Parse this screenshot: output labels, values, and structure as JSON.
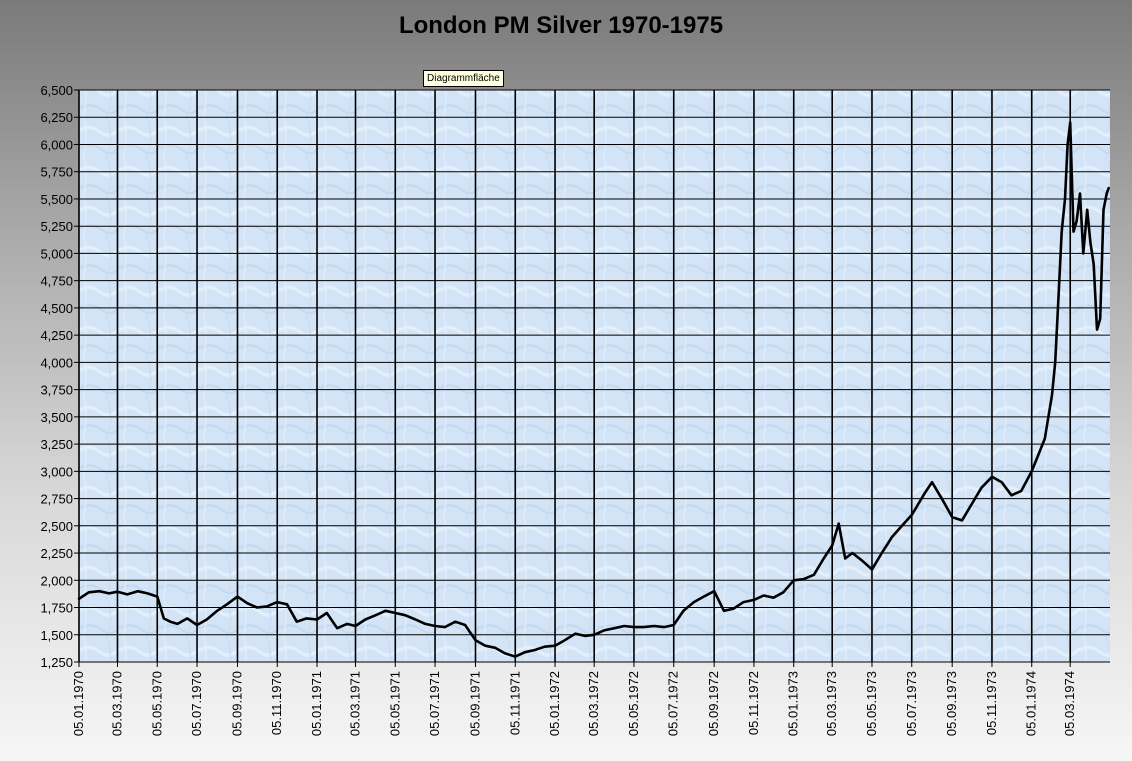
{
  "window": {
    "tooltip_text": "Diagrammfläche"
  },
  "chart_data": {
    "type": "line",
    "title": "London PM Silver 1970-1975",
    "xlabel": "",
    "ylabel": "",
    "ylim": [
      1250,
      6500
    ],
    "yticks": [
      1250,
      1500,
      1750,
      2000,
      2250,
      2500,
      2750,
      3000,
      3250,
      3500,
      3750,
      4000,
      4250,
      4500,
      4750,
      5000,
      5250,
      5500,
      5750,
      6000,
      6250,
      6500
    ],
    "ytick_labels": [
      "1,250",
      "1,500",
      "1,750",
      "2,000",
      "2,250",
      "2,500",
      "2,750",
      "3,000",
      "3,250",
      "3,500",
      "3,750",
      "4,000",
      "4,250",
      "4,500",
      "4,750",
      "5,000",
      "5,250",
      "5,500",
      "5,750",
      "6,000",
      "6,250",
      "6,500"
    ],
    "xlim": [
      "1970-01-05",
      "1974-05-05"
    ],
    "xticks": [
      "1970-01-05",
      "1970-03-05",
      "1970-05-05",
      "1970-07-05",
      "1970-09-05",
      "1970-11-05",
      "1971-01-05",
      "1971-03-05",
      "1971-05-05",
      "1971-07-05",
      "1971-09-05",
      "1971-11-05",
      "1972-01-05",
      "1972-03-05",
      "1972-05-05",
      "1972-07-05",
      "1972-09-05",
      "1972-11-05",
      "1973-01-05",
      "1973-03-05",
      "1973-05-05",
      "1973-07-05",
      "1973-09-05",
      "1973-11-05",
      "1974-01-05",
      "1974-03-05"
    ],
    "xtick_labels": [
      "05.01.1970",
      "05.03.1970",
      "05.05.1970",
      "05.07.1970",
      "05.09.1970",
      "05.11.1970",
      "05.01.1971",
      "05.03.1971",
      "05.05.1971",
      "05.07.1971",
      "05.09.1971",
      "05.11.1971",
      "05.01.1972",
      "05.03.1972",
      "05.05.1972",
      "05.07.1972",
      "05.09.1972",
      "05.11.1972",
      "05.01.1973",
      "05.03.1973",
      "05.05.1973",
      "05.07.1973",
      "05.09.1973",
      "05.11.1973",
      "05.01.1974",
      "05.03.1974"
    ],
    "grid": true,
    "legend": "none",
    "colors": {
      "line": "#000000",
      "grid": "#000000"
    },
    "series": [
      {
        "x": [
          "1970-01-05",
          "1970-01-20",
          "1970-02-05",
          "1970-02-20",
          "1970-03-05",
          "1970-03-20",
          "1970-04-05",
          "1970-04-20",
          "1970-05-05",
          "1970-05-15",
          "1970-05-25",
          "1970-06-05",
          "1970-06-20",
          "1970-07-05",
          "1970-07-20",
          "1970-08-05",
          "1970-08-20",
          "1970-09-05",
          "1970-09-20",
          "1970-10-05",
          "1970-10-20",
          "1970-11-05",
          "1970-11-20",
          "1970-12-05",
          "1970-12-20",
          "1971-01-05",
          "1971-01-20",
          "1971-02-05",
          "1971-02-20",
          "1971-03-05",
          "1971-03-20",
          "1971-04-05",
          "1971-04-20",
          "1971-05-05",
          "1971-05-20",
          "1971-06-05",
          "1971-06-20",
          "1971-07-05",
          "1971-07-20",
          "1971-08-05",
          "1971-08-20",
          "1971-09-05",
          "1971-09-20",
          "1971-10-05",
          "1971-10-20",
          "1971-11-05",
          "1971-11-20",
          "1971-12-05",
          "1971-12-20",
          "1972-01-05",
          "1972-01-20",
          "1972-02-05",
          "1972-02-20",
          "1972-03-05",
          "1972-03-20",
          "1972-04-05",
          "1972-04-20",
          "1972-05-05",
          "1972-05-20",
          "1972-06-05",
          "1972-06-20",
          "1972-07-05",
          "1972-07-20",
          "1972-08-05",
          "1972-08-20",
          "1972-09-05",
          "1972-09-20",
          "1972-10-05",
          "1972-10-20",
          "1972-11-05",
          "1972-11-20",
          "1972-12-05",
          "1972-12-20",
          "1973-01-05",
          "1973-01-20",
          "1973-02-05",
          "1973-02-20",
          "1973-03-05",
          "1973-03-15",
          "1973-03-25",
          "1973-04-05",
          "1973-04-20",
          "1973-05-05",
          "1973-05-20",
          "1973-06-05",
          "1973-06-20",
          "1973-07-05",
          "1973-07-15",
          "1973-07-25",
          "1973-08-05",
          "1973-08-20",
          "1973-09-05",
          "1973-09-20",
          "1973-10-05",
          "1973-10-20",
          "1973-11-05",
          "1973-11-20",
          "1973-12-05",
          "1973-12-20",
          "1974-01-05",
          "1974-01-15",
          "1974-01-25",
          "1974-02-05",
          "1974-02-10",
          "1974-02-15",
          "1974-02-20",
          "1974-02-25",
          "1974-03-01",
          "1974-03-05",
          "1974-03-10",
          "1974-03-15",
          "1974-03-20",
          "1974-03-25",
          "1974-03-31",
          "1974-04-05",
          "1974-04-10",
          "1974-04-15",
          "1974-04-20",
          "1974-04-25",
          "1974-04-30",
          "1974-05-03"
        ],
        "y": [
          1830,
          1890,
          1900,
          1880,
          1895,
          1870,
          1900,
          1880,
          1850,
          1650,
          1620,
          1600,
          1650,
          1590,
          1640,
          1720,
          1780,
          1850,
          1790,
          1750,
          1760,
          1800,
          1780,
          1620,
          1650,
          1640,
          1700,
          1560,
          1600,
          1580,
          1640,
          1680,
          1720,
          1700,
          1680,
          1640,
          1600,
          1580,
          1570,
          1620,
          1590,
          1450,
          1400,
          1380,
          1330,
          1300,
          1340,
          1360,
          1390,
          1400,
          1450,
          1510,
          1490,
          1500,
          1540,
          1560,
          1580,
          1570,
          1570,
          1580,
          1570,
          1590,
          1720,
          1800,
          1850,
          1900,
          1720,
          1740,
          1800,
          1820,
          1860,
          1840,
          1890,
          2000,
          2010,
          2050,
          2200,
          2320,
          2520,
          2200,
          2250,
          2180,
          2100,
          2250,
          2400,
          2500,
          2600,
          2700,
          2800,
          2900,
          2750,
          2580,
          2550,
          2700,
          2850,
          2950,
          2900,
          2780,
          2820,
          3000,
          3150,
          3300,
          3700,
          4000,
          4600,
          5200,
          5500,
          6000,
          6200,
          5200,
          5300,
          5550,
          5000,
          5400,
          5100,
          4900,
          4300,
          4400,
          5400,
          5550,
          5600
        ]
      }
    ]
  }
}
